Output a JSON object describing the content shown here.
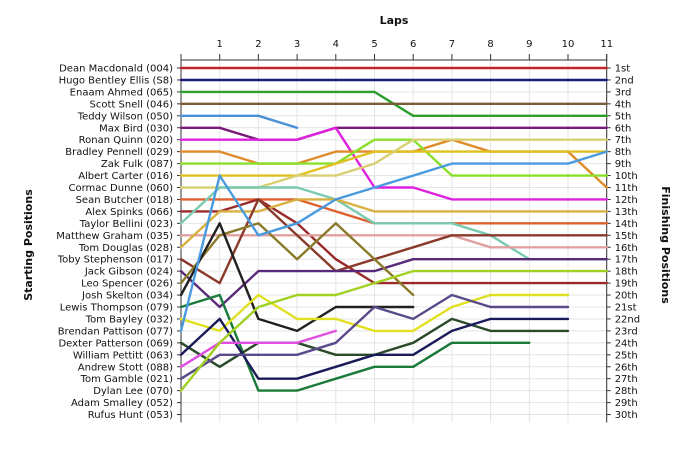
{
  "chart_data": {
    "type": "line",
    "title": "",
    "xlabel": "Laps",
    "ylabel_left": "Starting Positions",
    "ylabel_right": "Finishing Positions",
    "x": [
      0,
      1,
      2,
      3,
      4,
      5,
      6,
      7,
      8,
      9,
      10,
      11
    ],
    "lap_tick_labels": [
      "1",
      "2",
      "3",
      "4",
      "5",
      "6",
      "7",
      "8",
      "9",
      "10",
      "11"
    ],
    "finishing_labels": [
      "1st",
      "2nd",
      "3rd",
      "4th",
      "5th",
      "6th",
      "7th",
      "8th",
      "9th",
      "10th",
      "11th",
      "12th",
      "13th",
      "14th",
      "15th",
      "16th",
      "17th",
      "18th",
      "19th",
      "20th",
      "21st",
      "22nd",
      "23rd",
      "24th",
      "25th",
      "26th",
      "27th",
      "28th",
      "29th",
      "30th"
    ],
    "grid": true,
    "series": [
      {
        "name": "Dean Macdonald (004)",
        "color": "#c0272d",
        "positions": [
          1,
          1,
          1,
          1,
          1,
          1,
          1,
          1,
          1,
          1,
          1,
          1
        ]
      },
      {
        "name": "Hugo Bentley Ellis (S8)",
        "color": "#1a1a7a",
        "positions": [
          2,
          2,
          2,
          2,
          2,
          2,
          2,
          2,
          2,
          2,
          2,
          2
        ]
      },
      {
        "name": "Enaam Ahmed (065)",
        "color": "#2e9e2e",
        "positions": [
          3,
          3,
          3,
          3,
          3,
          3,
          5,
          5,
          5,
          5,
          5,
          5
        ]
      },
      {
        "name": "Scott Snell (046)",
        "color": "#7a5c3a",
        "positions": [
          4,
          4,
          4,
          4,
          4,
          4,
          4,
          4,
          4,
          4,
          4,
          4
        ]
      },
      {
        "name": "Teddy Wilson (050)",
        "color": "#4a90d9",
        "positions": [
          5,
          5,
          5,
          6
        ]
      },
      {
        "name": "Max Bird (030)",
        "color": "#7a1a7a",
        "positions": [
          6,
          6,
          7,
          7,
          6,
          6,
          6,
          6,
          6,
          6,
          6,
          6
        ]
      },
      {
        "name": "Ronan Quinn (020)",
        "color": "#e020e0",
        "positions": [
          7,
          7,
          7,
          7,
          6,
          11,
          11,
          12,
          12,
          12,
          12,
          12
        ]
      },
      {
        "name": "Bradley Pennell (029)",
        "color": "#e08a2a",
        "positions": [
          8,
          8,
          9,
          9,
          8,
          8,
          8,
          7,
          8,
          8,
          8,
          11
        ]
      },
      {
        "name": "Zak Fulk (087)",
        "color": "#8adf2a",
        "positions": [
          9,
          9,
          9,
          9,
          9,
          7,
          7,
          10,
          10,
          10,
          10,
          10
        ]
      },
      {
        "name": "Albert Carter (016)",
        "color": "#e0c020",
        "positions": [
          10,
          10,
          10,
          10,
          9,
          8,
          8,
          8,
          8,
          8,
          8,
          8
        ]
      },
      {
        "name": "Cormac Dunne (060)",
        "color": "#d8d070",
        "positions": [
          11,
          11,
          11,
          10,
          10,
          9,
          7,
          7,
          7,
          7,
          7,
          7
        ]
      },
      {
        "name": "Sean Butcher (018)",
        "color": "#e06030",
        "positions": [
          12,
          12,
          12,
          12,
          13,
          14,
          14,
          14,
          14,
          14,
          14,
          14
        ]
      },
      {
        "name": "Alex Spinks (066)",
        "color": "#9a2a2a",
        "positions": [
          13,
          13,
          12,
          14,
          17,
          19,
          19,
          19,
          19,
          19,
          19,
          19
        ]
      },
      {
        "name": "Taylor Bellini (023)",
        "color": "#7acab0",
        "positions": [
          14,
          11,
          11,
          11,
          12,
          14,
          14,
          14,
          15,
          17,
          17,
          17
        ]
      },
      {
        "name": "Matthew Graham (035)",
        "color": "#e0a0a0",
        "positions": [
          15,
          15,
          15,
          15,
          15,
          15,
          15,
          15,
          16,
          16,
          16,
          16
        ]
      },
      {
        "name": "Tom Douglas (028)",
        "color": "#d8b040",
        "positions": [
          16,
          13,
          13,
          12,
          12,
          13,
          13,
          13,
          13,
          13,
          13,
          13
        ]
      },
      {
        "name": "Toby Stephenson (017)",
        "color": "#8a3a2a",
        "positions": [
          17,
          19,
          12,
          15,
          18,
          17,
          16,
          15,
          15,
          15,
          15,
          15
        ]
      },
      {
        "name": "Jack Gibson (024)",
        "color": "#5a2a7a",
        "positions": [
          18,
          21,
          18,
          18,
          18,
          18,
          17,
          17,
          17,
          17,
          17,
          17
        ]
      },
      {
        "name": "Leo Spencer (026)",
        "color": "#8a7a2a",
        "positions": [
          19,
          15,
          14,
          17,
          14,
          17,
          20
        ]
      },
      {
        "name": "Josh Skelton (034)",
        "color": "#202020",
        "positions": [
          20,
          14,
          22,
          23,
          21,
          21,
          21
        ]
      },
      {
        "name": "Lewis Thompson (079)",
        "color": "#1a7a3a",
        "positions": [
          21,
          20,
          28,
          28,
          27,
          26,
          26,
          24,
          24,
          24
        ]
      },
      {
        "name": "Tom Bayley (032)",
        "color": "#e0e020",
        "positions": [
          22,
          23,
          20,
          22,
          22,
          23,
          23,
          21,
          20,
          20,
          20
        ]
      },
      {
        "name": "Brendan Pattison (077)",
        "color": "#4a9adf",
        "positions": [
          23,
          10,
          15,
          14,
          12,
          11,
          10,
          9,
          9,
          9,
          9,
          8
        ]
      },
      {
        "name": "Dexter Patterson (069)",
        "color": "#2a4a2a",
        "positions": [
          24,
          26,
          24,
          24,
          25,
          25,
          24,
          22,
          23,
          23,
          23
        ]
      },
      {
        "name": "William Pettitt (063)",
        "color": "#1a1a5a",
        "positions": [
          25,
          22,
          27,
          27,
          26,
          25,
          25,
          23,
          22,
          22,
          22
        ]
      },
      {
        "name": "Andrew Stott (088)",
        "color": "#e050e0",
        "positions": [
          26,
          24,
          24,
          24,
          23
        ]
      },
      {
        "name": "Tom Gamble (021)",
        "color": "#5a4a8a",
        "positions": [
          27,
          25,
          25,
          25,
          24,
          21,
          22,
          20,
          21,
          21,
          21
        ]
      },
      {
        "name": "Dylan Lee (070)",
        "color": "#a0d020",
        "positions": [
          28,
          24,
          21,
          20,
          20,
          19,
          18,
          18,
          18,
          18,
          18,
          18
        ]
      },
      {
        "name": "Adam Smalley (052)",
        "color": "#88aadd",
        "positions": []
      },
      {
        "name": "Rufus Hunt (053)",
        "color": "#888888",
        "positions": []
      }
    ]
  }
}
